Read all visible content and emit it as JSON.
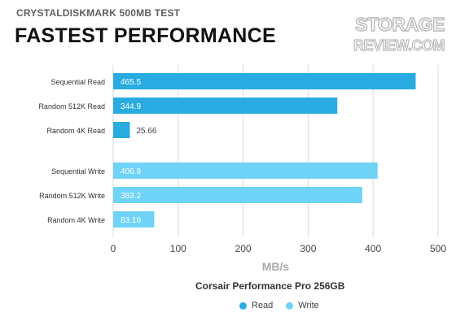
{
  "header": {
    "subtitle": "CRYSTALDISKMARK 500MB TEST",
    "title": "FASTEST PERFORMANCE"
  },
  "logo": {
    "line1": "STORAGE",
    "line2": "REVIEW.COM"
  },
  "legend": {
    "title": "Corsair Performance Pro 256GB",
    "items": [
      {
        "label": "Read",
        "color": "#29abe2"
      },
      {
        "label": "Write",
        "color": "#6fd3f7"
      }
    ]
  },
  "chart_data": {
    "type": "bar",
    "orientation": "horizontal",
    "categories": [
      "Sequential Read",
      "Random 512K Read",
      "Random 4K Read",
      "Sequential Write",
      "Random 512K Write",
      "Random 4K Write"
    ],
    "values": [
      465.5,
      344.9,
      25.66,
      406.9,
      383.2,
      63.16
    ],
    "value_labels": [
      "465.5",
      "344.9",
      "25.66",
      "406.9",
      "383.2",
      "63.16"
    ],
    "groups": [
      "Read",
      "Read",
      "Read",
      "Write",
      "Write",
      "Write"
    ],
    "series": [
      {
        "name": "Read",
        "color": "#29abe2"
      },
      {
        "name": "Write",
        "color": "#6fd3f7"
      }
    ],
    "xlabel": "MB/s",
    "xlim": [
      0,
      500
    ],
    "xticks": [
      0,
      100,
      200,
      300,
      400,
      500
    ],
    "grid": true,
    "legend_position": "bottom"
  }
}
